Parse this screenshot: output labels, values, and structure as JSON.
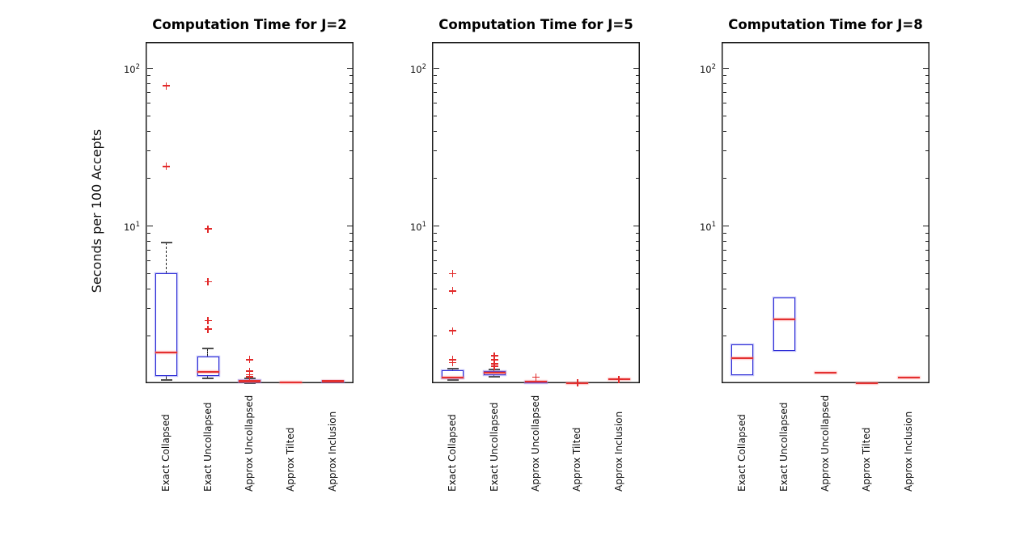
{
  "colors": {
    "box_edge": "#2b2bd5",
    "box_halo": "#7d7df0",
    "median": "#e33030",
    "whisker": "#222222",
    "cap": "#4d4d4d",
    "outlier": "#e22b2b",
    "axis": "#1c1c1c",
    "text": "#111111",
    "background": "#ffffff"
  },
  "chart_data": {
    "type": "boxplot",
    "yscale": "log",
    "ylim": [
      1,
      146
    ],
    "ylabel": "Seconds per 100 Accepts",
    "grid": false,
    "legend": null,
    "y_ticks": [
      {
        "value": 10,
        "base": "10",
        "exp": "1"
      },
      {
        "value": 100,
        "base": "10",
        "exp": "2"
      }
    ],
    "y_minor_ticks": [
      2,
      3,
      4,
      5,
      6,
      7,
      8,
      9,
      20,
      30,
      40,
      50,
      60,
      70,
      80,
      90
    ],
    "categories": [
      "Exact Collapsed",
      "Exact Uncollapsed",
      "Approx Uncollapsed",
      "Approx Tilted",
      "Approx Inclusion"
    ],
    "subplots": [
      {
        "title": "Computation Time for J=2",
        "series": [
          {
            "category": "Exact Collapsed",
            "whislo": 1.05,
            "q1": 1.11,
            "med": 1.57,
            "q3": 5.0,
            "whishi": 7.8,
            "fliers": [
              23.7,
              77
            ]
          },
          {
            "category": "Exact Uncollapsed",
            "whislo": 1.07,
            "q1": 1.11,
            "med": 1.18,
            "q3": 1.48,
            "whishi": 1.66,
            "fliers": [
              2.2,
              2.5,
              4.4,
              9.5
            ]
          },
          {
            "category": "Approx Uncollapsed",
            "whislo": 1.0,
            "q1": 1.015,
            "med": 1.03,
            "q3": 1.05,
            "whishi": 1.07,
            "fliers": [
              1.1,
              1.13,
              1.19,
              1.41
            ]
          },
          {
            "category": "Approx Tilted",
            "whislo": 1.015,
            "q1": 1.015,
            "med": 1.015,
            "q3": 1.015,
            "whishi": 1.015,
            "fliers": []
          },
          {
            "category": "Approx Inclusion",
            "whislo": 1.02,
            "q1": 1.02,
            "med": 1.03,
            "q3": 1.04,
            "whishi": 1.04,
            "fliers": []
          }
        ]
      },
      {
        "title": "Computation Time for J=5",
        "series": [
          {
            "category": "Exact Collapsed",
            "whislo": 1.05,
            "q1": 1.07,
            "med": 1.09,
            "q3": 1.21,
            "whishi": 1.24,
            "fliers": [
              1.35,
              1.41,
              2.15,
              3.85,
              4.95
            ]
          },
          {
            "category": "Exact Uncollapsed",
            "whislo": 1.1,
            "q1": 1.13,
            "med": 1.16,
            "q3": 1.19,
            "whishi": 1.22,
            "fliers": [
              1.28,
              1.33,
              1.41,
              1.49
            ]
          },
          {
            "category": "Approx Uncollapsed",
            "whislo": 1.0,
            "q1": 1.01,
            "med": 1.02,
            "q3": 1.03,
            "whishi": 1.04,
            "fliers": [
              1.09
            ]
          },
          {
            "category": "Approx Tilted",
            "whislo": 1.005,
            "q1": 1.005,
            "med": 1.005,
            "q3": 1.005,
            "whishi": 1.005,
            "fliers": [
              1.005
            ]
          },
          {
            "category": "Approx Inclusion",
            "whislo": 1.06,
            "q1": 1.06,
            "med": 1.06,
            "q3": 1.06,
            "whishi": 1.06,
            "fliers": [
              1.06
            ]
          }
        ]
      },
      {
        "title": "Computation Time for J=8",
        "series": [
          {
            "category": "Exact Collapsed",
            "whislo": 1.13,
            "q1": 1.13,
            "med": 1.44,
            "q3": 1.77,
            "whishi": 1.77,
            "fliers": []
          },
          {
            "category": "Exact Uncollapsed",
            "whislo": 1.6,
            "q1": 1.6,
            "med": 2.54,
            "q3": 3.48,
            "whishi": 3.48,
            "fliers": []
          },
          {
            "category": "Approx Uncollapsed",
            "whislo": 1.16,
            "q1": 1.16,
            "med": 1.16,
            "q3": 1.16,
            "whishi": 1.16,
            "fliers": []
          },
          {
            "category": "Approx Tilted",
            "whislo": 1.005,
            "q1": 1.005,
            "med": 1.005,
            "q3": 1.005,
            "whishi": 1.005,
            "fliers": []
          },
          {
            "category": "Approx Inclusion",
            "whislo": 1.09,
            "q1": 1.09,
            "med": 1.09,
            "q3": 1.09,
            "whishi": 1.09,
            "fliers": []
          }
        ]
      }
    ]
  }
}
